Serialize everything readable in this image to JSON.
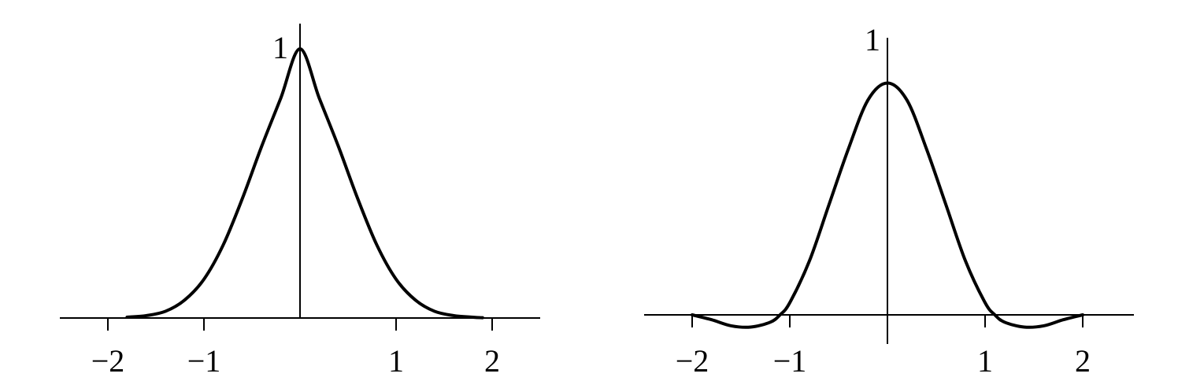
{
  "chart_data": [
    {
      "type": "line",
      "title": "",
      "xlabel": "",
      "ylabel": "",
      "xlim": [
        -2.6,
        2.5
      ],
      "ylim": [
        0,
        1.1
      ],
      "grid": false,
      "x_ticks": [
        -2,
        -1,
        1,
        2
      ],
      "x_tick_labels": [
        "−2",
        "−1",
        "1",
        "2"
      ],
      "y_ticks": [
        1
      ],
      "y_tick_labels": [
        "1"
      ],
      "series": [
        {
          "x": [
            -1.8,
            -1.6,
            -1.4,
            -1.2,
            -1.0,
            -0.8,
            -0.6,
            -0.4,
            -0.2,
            0.0,
            0.2,
            0.4,
            0.6,
            0.8,
            1.0,
            1.2,
            1.4,
            1.6,
            1.8,
            1.9
          ],
          "y": [
            0.003,
            0.009,
            0.025,
            0.067,
            0.144,
            0.271,
            0.444,
            0.637,
            0.817,
            1.0,
            0.817,
            0.637,
            0.444,
            0.271,
            0.144,
            0.067,
            0.025,
            0.009,
            0.003,
            0.001
          ]
        }
      ]
    },
    {
      "type": "line",
      "title": "",
      "xlabel": "",
      "ylabel": "",
      "xlim": [
        -2.5,
        2.5
      ],
      "ylim": [
        -0.1,
        1.1
      ],
      "grid": false,
      "x_ticks": [
        -2,
        -1,
        1,
        2
      ],
      "x_tick_labels": [
        "−2",
        "−1",
        "1",
        "2"
      ],
      "y_ticks": [
        1
      ],
      "y_tick_labels": [
        "1"
      ],
      "series": [
        {
          "x": [
            -2.0,
            -1.8,
            -1.6,
            -1.4,
            -1.2,
            -1.1,
            -1.0,
            -0.8,
            -0.6,
            -0.4,
            -0.2,
            0.0,
            0.2,
            0.4,
            0.6,
            0.8,
            1.0,
            1.1,
            1.2,
            1.4,
            1.6,
            1.8,
            2.0
          ],
          "y": [
            0.0,
            -0.02,
            -0.045,
            -0.05,
            -0.03,
            0.0,
            0.05,
            0.22,
            0.45,
            0.68,
            0.88,
            0.95,
            0.88,
            0.68,
            0.45,
            0.22,
            0.05,
            0.0,
            -0.03,
            -0.05,
            -0.045,
            -0.02,
            0.0
          ]
        }
      ]
    }
  ]
}
